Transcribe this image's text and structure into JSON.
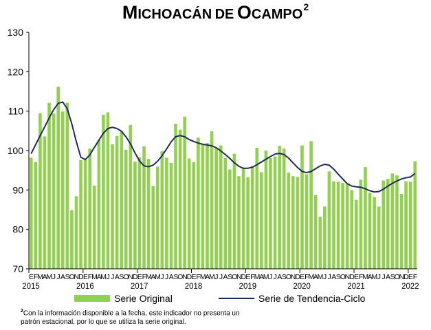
{
  "title": {
    "main": "Michoacán de Ocampo",
    "superscript": "2"
  },
  "footnote": {
    "marker": "2",
    "text": "Con la información disponible a la fecha, este indicador no presenta un patrón estacional, por lo que se utiliza la serie original."
  },
  "colors": {
    "bar": "#92D050",
    "line": "#1F2A5A",
    "axis": "#000000"
  },
  "chart_data": {
    "type": "bar",
    "ylim": [
      70,
      130
    ],
    "yticks": [
      70,
      80,
      90,
      100,
      110,
      120,
      130
    ],
    "grid": false,
    "legend": "bottom",
    "month_letters": [
      "E",
      "F",
      "M",
      "A",
      "M",
      "J",
      "J",
      "A",
      "S",
      "O",
      "N",
      "D"
    ],
    "years": [
      "2015",
      "2016",
      "2017",
      "2018",
      "2019",
      "2020",
      "2021",
      "2022"
    ],
    "series": [
      {
        "name": "Serie Original",
        "type": "bar",
        "values": [
          98.2,
          97.1,
          109.5,
          103.6,
          112.1,
          109.4,
          116.2,
          109.9,
          112.1,
          84.9,
          88.4,
          97.6,
          97.6,
          100.5,
          91.1,
          102.7,
          109.1,
          109.7,
          101.6,
          103.7,
          104.9,
          100.2,
          106.5,
          97.2,
          98.3,
          101.1,
          97.9,
          91.0,
          95.9,
          99.8,
          98.2,
          96.9,
          106.8,
          105.3,
          108.6,
          98.0,
          97.1,
          103.3,
          101.7,
          101.9,
          104.9,
          100.6,
          101.3,
          98.1,
          95.2,
          99.2,
          93.5,
          95.7,
          93.2,
          96.1,
          100.7,
          94.5,
          100.0,
          98.1,
          98.5,
          101.2,
          100.5,
          94.4,
          93.5,
          93.3,
          101.3,
          94.0,
          102.4,
          88.7,
          83.2,
          85.8,
          94.7,
          92.2,
          92.1,
          91.8,
          91.5,
          90.0,
          87.5,
          92.6,
          95.8,
          89.3,
          88.2,
          85.8,
          92.4,
          92.8,
          94.2,
          93.7,
          89.0,
          92.2,
          92.1,
          97.3
        ]
      },
      {
        "name": "Serie de Tendencia-Ciclo",
        "type": "line",
        "values": [
          99.2,
          101.5,
          103.8,
          106.0,
          108.3,
          110.4,
          112.0,
          112.3,
          110.6,
          106.8,
          102.3,
          98.3,
          97.7,
          98.9,
          100.8,
          102.6,
          104.4,
          105.6,
          105.9,
          105.6,
          104.9,
          103.5,
          101.7,
          99.4,
          97.4,
          96.1,
          95.9,
          96.3,
          97.3,
          98.7,
          100.4,
          102.2,
          103.5,
          103.8,
          103.5,
          102.8,
          102.3,
          101.9,
          101.6,
          101.4,
          101.2,
          100.7,
          99.9,
          99.0,
          98.0,
          96.9,
          96.0,
          95.5,
          95.5,
          95.8,
          96.4,
          97.1,
          97.8,
          98.5,
          99.1,
          99.3,
          99.0,
          98.1,
          96.9,
          95.7,
          94.7,
          94.4,
          94.7,
          95.4,
          96.1,
          96.5,
          96.3,
          95.3,
          94.0,
          92.8,
          91.6,
          91.0,
          90.8,
          90.7,
          90.3,
          89.8,
          89.5,
          89.6,
          90.2,
          91.0,
          91.7,
          92.3,
          92.8,
          93.1,
          93.3,
          94.2
        ]
      }
    ]
  }
}
